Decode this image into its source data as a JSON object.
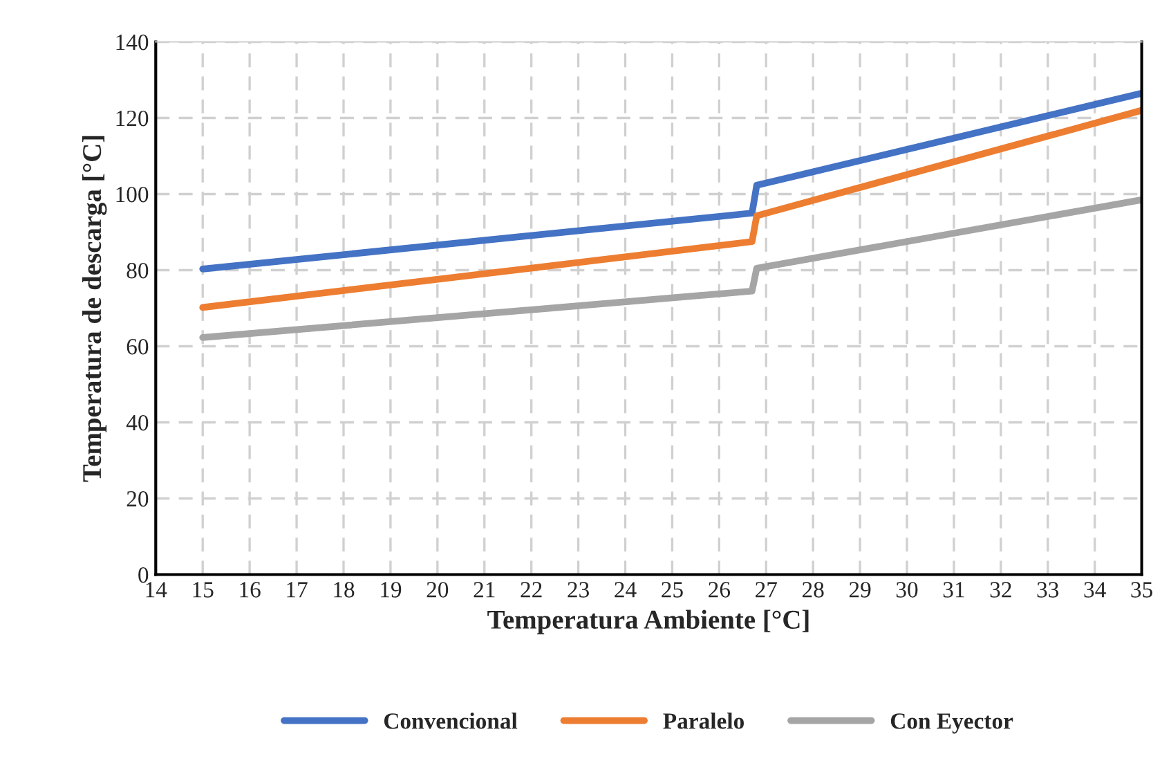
{
  "chart_data": {
    "type": "line",
    "xlabel": "Temperatura Ambiente [°C]",
    "ylabel": "Temperatura de descarga [°C]",
    "xlim": [
      14,
      35
    ],
    "xticks": [
      14,
      15,
      16,
      17,
      18,
      19,
      20,
      21,
      22,
      23,
      24,
      25,
      26,
      27,
      28,
      29,
      30,
      31,
      32,
      33,
      34,
      35
    ],
    "ylim": [
      0,
      140
    ],
    "yticks": [
      0,
      20,
      40,
      60,
      80,
      100,
      120,
      140
    ],
    "grid": true,
    "legend": "bottom",
    "line_style": "solid",
    "marker": "none",
    "x": [
      15,
      26.7,
      26.8,
      35
    ],
    "series": [
      {
        "name": "Convencional",
        "color": "#4472c4",
        "values": [
          80.3,
          95,
          102.3,
          126.5
        ]
      },
      {
        "name": "Paralelo",
        "color": "#ed7d31",
        "values": [
          70.2,
          87.5,
          94.3,
          122
        ]
      },
      {
        "name": "Con Eyector",
        "color": "#a5a5a5",
        "values": [
          62.3,
          74.5,
          80.5,
          98.5
        ]
      }
    ]
  }
}
